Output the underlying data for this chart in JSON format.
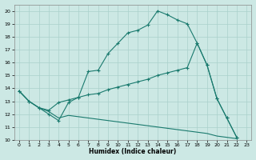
{
  "xlabel": "Humidex (Indice chaleur)",
  "bg_color": "#cce8e4",
  "grid_color": "#aad0cb",
  "line_color": "#1a7a6e",
  "xlim": [
    -0.5,
    23.5
  ],
  "ylim": [
    10,
    20.5
  ],
  "xticks": [
    0,
    1,
    2,
    3,
    4,
    5,
    6,
    7,
    8,
    9,
    10,
    11,
    12,
    13,
    14,
    15,
    16,
    17,
    18,
    19,
    20,
    21,
    22,
    23
  ],
  "yticks": [
    10,
    11,
    12,
    13,
    14,
    15,
    16,
    17,
    18,
    19,
    20
  ],
  "line1_x": [
    0,
    1,
    2,
    3,
    4,
    5,
    6,
    7,
    8,
    9,
    10,
    11,
    12,
    13,
    14,
    15,
    16,
    17,
    18,
    19,
    20,
    21,
    22
  ],
  "line1_y": [
    13.8,
    13.0,
    12.5,
    12.0,
    11.5,
    12.9,
    13.3,
    15.3,
    15.4,
    16.7,
    17.5,
    18.3,
    18.5,
    18.9,
    20.0,
    19.7,
    19.3,
    19.0,
    17.5,
    15.8,
    13.2,
    11.7,
    10.2
  ],
  "line2_x": [
    0,
    1,
    2,
    3,
    4,
    5,
    6,
    7,
    8,
    9,
    10,
    11,
    12,
    13,
    14,
    15,
    16,
    17,
    18,
    19,
    20,
    21,
    22
  ],
  "line2_y": [
    13.8,
    13.0,
    12.5,
    12.3,
    12.9,
    13.1,
    13.3,
    13.5,
    13.6,
    13.9,
    14.1,
    14.3,
    14.5,
    14.7,
    15.0,
    15.2,
    15.4,
    15.6,
    17.5,
    15.8,
    13.2,
    11.7,
    10.2
  ],
  "line3_x": [
    0,
    1,
    2,
    3,
    4,
    5,
    6,
    7,
    8,
    9,
    10,
    11,
    12,
    13,
    14,
    15,
    16,
    17,
    18,
    19,
    20,
    21,
    22
  ],
  "line3_y": [
    13.8,
    13.0,
    12.5,
    12.2,
    11.7,
    11.9,
    11.8,
    11.7,
    11.6,
    11.5,
    11.4,
    11.3,
    11.2,
    11.1,
    11.0,
    10.9,
    10.8,
    10.7,
    10.6,
    10.5,
    10.3,
    10.2,
    10.1
  ]
}
